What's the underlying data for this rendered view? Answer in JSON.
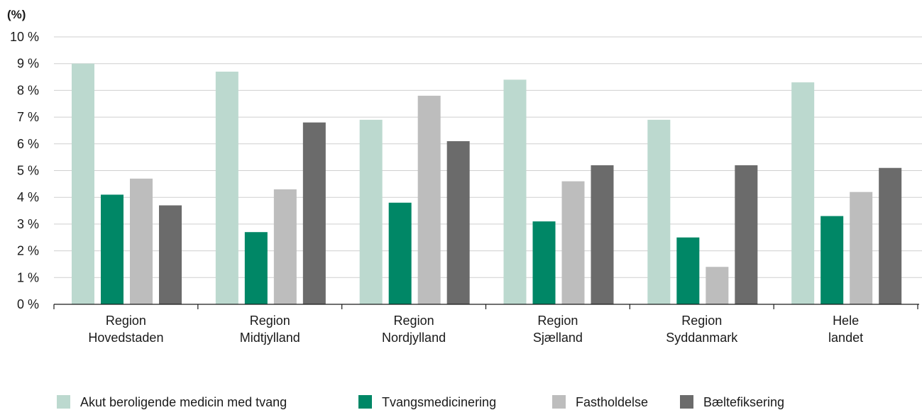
{
  "chart_data": {
    "type": "bar",
    "unit_label": "(%)",
    "y_tick_labels": [
      "0 %",
      "1 %",
      "2 %",
      "3 %",
      "4 %",
      "5 %",
      "6 %",
      "7 %",
      "8 %",
      "9 %",
      "10 %"
    ],
    "ylim": [
      0,
      10
    ],
    "grid": true,
    "legend_position": "bottom",
    "categories": [
      [
        "Region",
        "Hovedstaden"
      ],
      [
        "Region",
        "Midtjylland"
      ],
      [
        "Region",
        "Nordjylland"
      ],
      [
        "Region",
        "Sjælland"
      ],
      [
        "Region",
        "Syddanmark"
      ],
      [
        "Hele",
        "landet"
      ]
    ],
    "series": [
      {
        "name": "Akut beroligende medicin med tvang",
        "color": "#bcd9cf",
        "values": [
          9.0,
          8.7,
          6.9,
          8.4,
          6.9,
          8.3
        ]
      },
      {
        "name": "Tvangsmedicinering",
        "color": "#008766",
        "values": [
          4.1,
          2.7,
          3.8,
          3.1,
          2.5,
          3.3
        ]
      },
      {
        "name": "Fastholdelse",
        "color": "#bdbdbd",
        "values": [
          4.7,
          4.3,
          7.8,
          4.6,
          1.4,
          4.2
        ]
      },
      {
        "name": "Bæltefiksering",
        "color": "#6b6b6b",
        "values": [
          3.7,
          6.8,
          6.1,
          5.2,
          5.2,
          5.1
        ]
      }
    ]
  }
}
